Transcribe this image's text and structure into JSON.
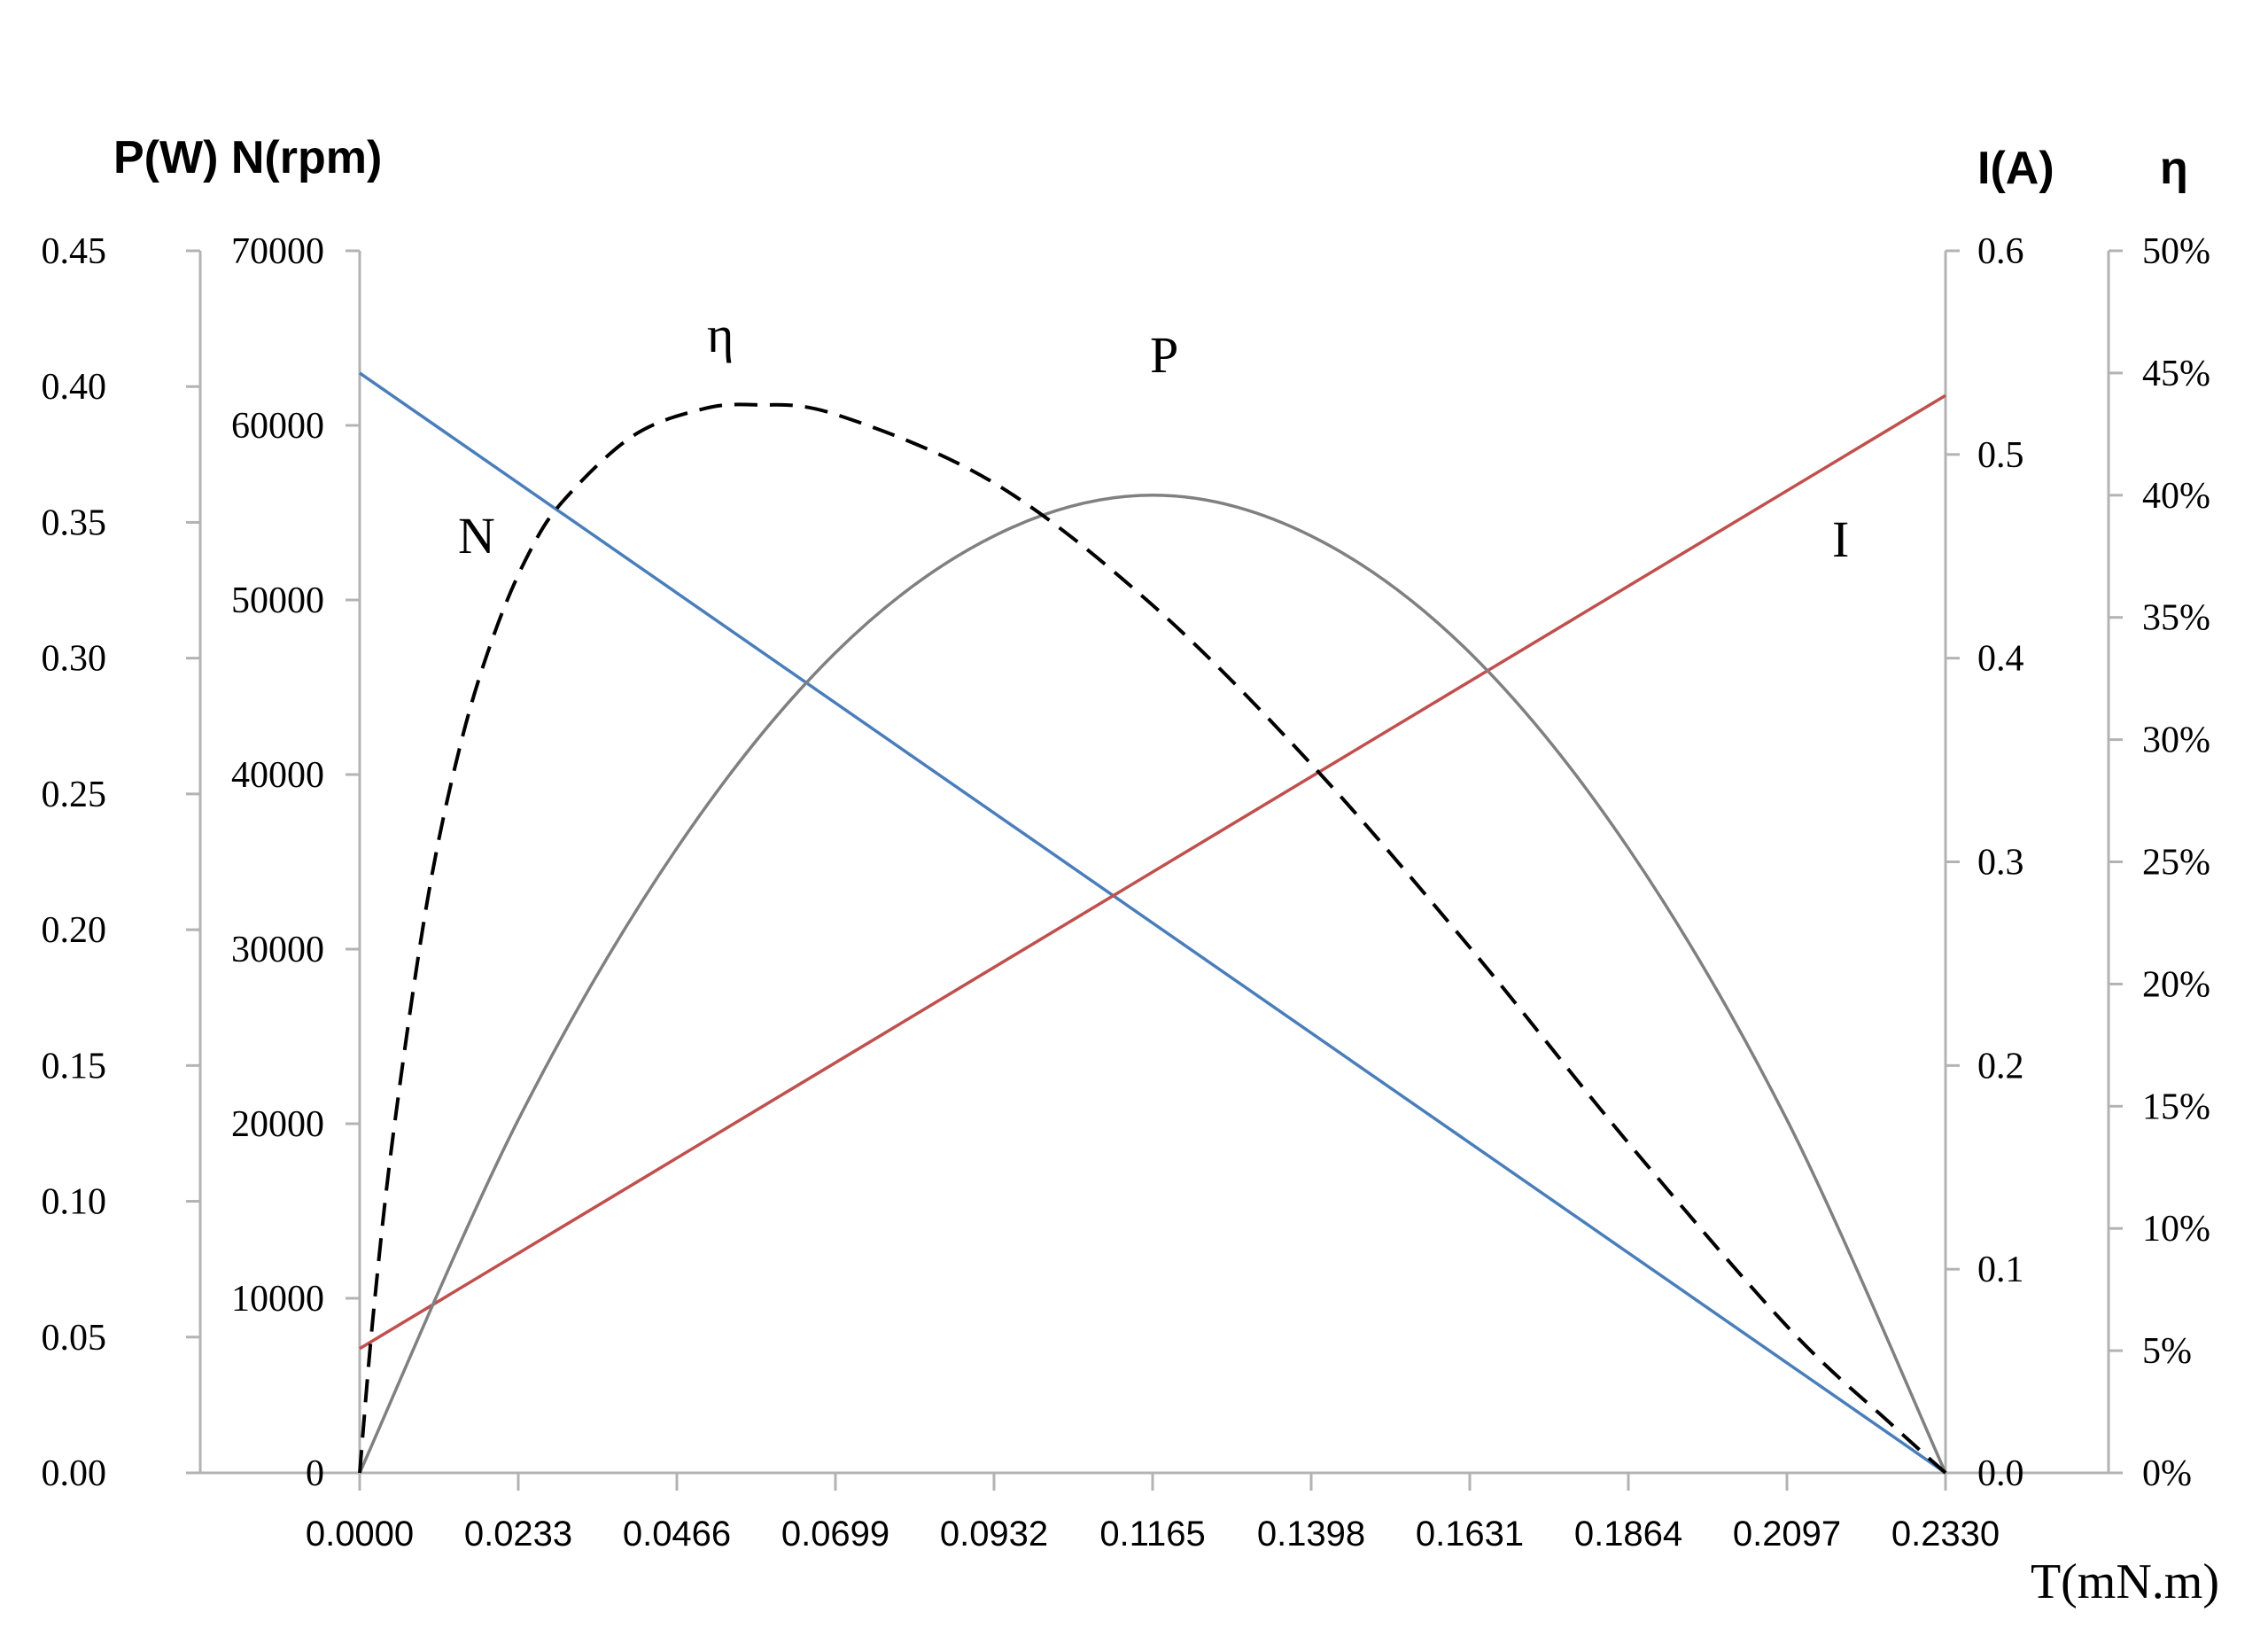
{
  "chart_data": {
    "type": "line",
    "titles": {
      "left": "P(W) N(rpm)",
      "right_current": "I(A)",
      "right_efficiency": "η"
    },
    "xlabel": "T(mN.m)",
    "x_ticks": [
      "0.0000",
      "0.0233",
      "0.0466",
      "0.0699",
      "0.0932",
      "0.1165",
      "0.1398",
      "0.1631",
      "0.1864",
      "0.2097",
      "0.2330"
    ],
    "xlim": [
      0,
      0.233
    ],
    "axes": {
      "power": {
        "ticks": [
          "0.00",
          "0.05",
          "0.10",
          "0.15",
          "0.20",
          "0.25",
          "0.30",
          "0.35",
          "0.40",
          "0.45"
        ],
        "ylim": [
          0,
          0.45
        ]
      },
      "speed": {
        "ticks": [
          "0",
          "10000",
          "20000",
          "30000",
          "40000",
          "50000",
          "60000",
          "70000"
        ],
        "ylim": [
          0,
          70000
        ]
      },
      "current": {
        "ticks": [
          "0.0",
          "0.1",
          "0.2",
          "0.3",
          "0.4",
          "0.5",
          "0.6"
        ],
        "ylim": [
          0,
          0.6
        ]
      },
      "efficiency": {
        "ticks": [
          "0%",
          "5%",
          "10%",
          "15%",
          "20%",
          "25%",
          "30%",
          "35%",
          "40%",
          "45%",
          "50%"
        ],
        "ylim": [
          0,
          50
        ]
      }
    },
    "series": [
      {
        "name": "N",
        "axis": "speed",
        "color": "#4a7ebb",
        "dash": false,
        "x": [
          0,
          0.233
        ],
        "y": [
          63000,
          0
        ]
      },
      {
        "name": "I",
        "axis": "current",
        "color": "#c0504d",
        "dash": false,
        "x": [
          0,
          0.233
        ],
        "y": [
          0.061,
          0.529
        ]
      },
      {
        "name": "P",
        "axis": "power",
        "color": "#808080",
        "dash": false,
        "x": [
          0,
          0.0233,
          0.0466,
          0.0699,
          0.0932,
          0.1165,
          0.1398,
          0.1631,
          0.1864,
          0.2097,
          0.233
        ],
        "y": [
          0,
          0.13,
          0.23,
          0.302,
          0.345,
          0.36,
          0.345,
          0.302,
          0.23,
          0.13,
          0
        ]
      },
      {
        "name": "η",
        "axis": "efficiency",
        "color": "#000000",
        "dash": true,
        "x": [
          0,
          0.002,
          0.005,
          0.01,
          0.015,
          0.02,
          0.025,
          0.03,
          0.04,
          0.05,
          0.058,
          0.07,
          0.0932,
          0.1165,
          0.1398,
          0.1631,
          0.1864,
          0.2097,
          0.225,
          0.233
        ],
        "y": [
          0,
          6.5,
          14.0,
          23.5,
          30.0,
          34.5,
          37.7,
          39.8,
          42.4,
          43.5,
          43.7,
          43.3,
          40.5,
          35.5,
          29.0,
          21.5,
          13.5,
          6.0,
          2.0,
          0
        ]
      }
    ]
  }
}
